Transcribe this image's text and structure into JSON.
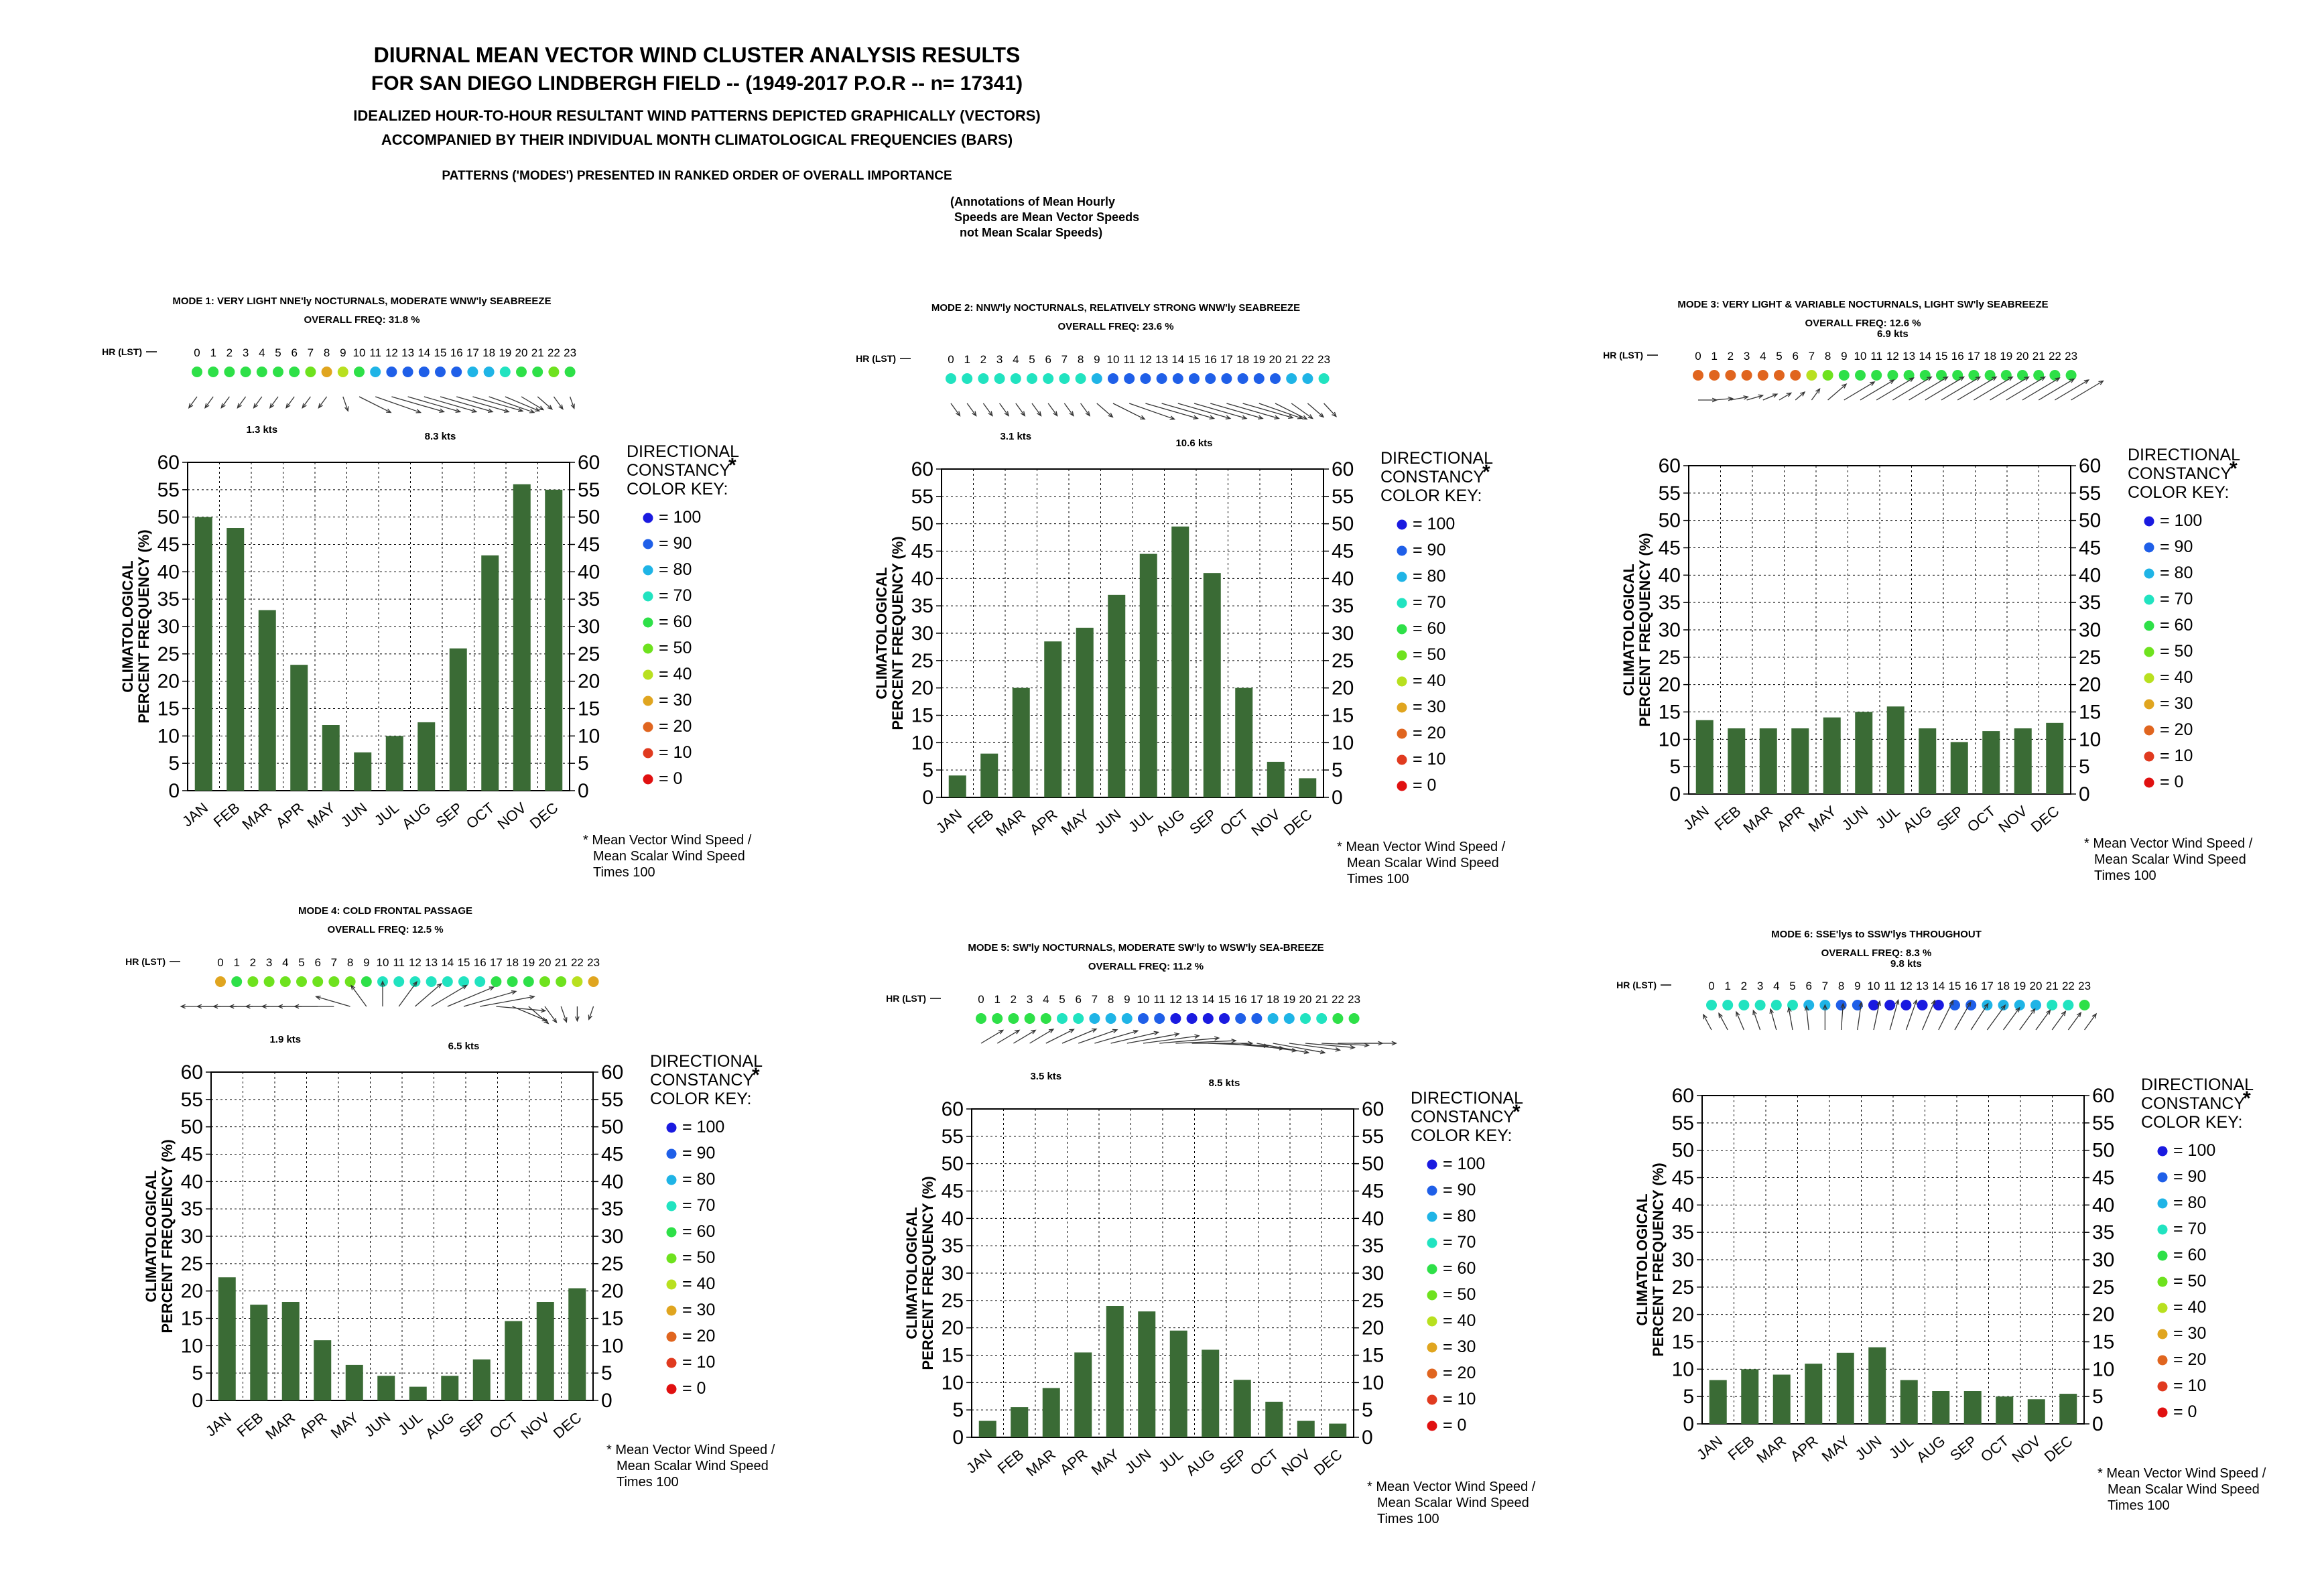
{
  "header": {
    "title": "DIURNAL MEAN VECTOR WIND CLUSTER ANALYSIS RESULTS",
    "subtitle": "FOR SAN DIEGO LINDBERGH FIELD --  (1949-2017 P.O.R -- n= 17341)",
    "line3": "IDEALIZED HOUR-TO-HOUR RESULTANT WIND PATTERNS DEPICTED GRAPHICALLY (VECTORS)",
    "line4": "ACCOMPANIED BY THEIR INDIVIDUAL MONTH CLIMATOLOGICAL FREQUENCIES (BARS)",
    "line5": "PATTERNS ('MODES') PRESENTED IN RANKED ORDER OF OVERALL IMPORTANCE",
    "note": [
      "(Annotations of Mean Hourly",
      "Speeds are Mean Vector Speeds",
      "not Mean Scalar Speeds)"
    ]
  },
  "common": {
    "ylabel_line1": "CLIMATOLOGICAL",
    "ylabel_line2": "PERCENT FREQUENCY (%)",
    "hr_label": "HR (LST)",
    "key_title": [
      "DIRECTIONAL",
      "CONSTANCY",
      "COLOR KEY:"
    ],
    "key_star": "*",
    "footnote": [
      "* Mean Vector Wind Speed /",
      "Mean Scalar Wind Speed",
      "Times 100"
    ],
    "key_levels": [
      100,
      90,
      80,
      70,
      60,
      50,
      40,
      30,
      20,
      10,
      0
    ],
    "key_colors": {
      "100": "#1a1ae0",
      "90": "#1f5fe8",
      "80": "#1fb4e6",
      "70": "#21e3c0",
      "60": "#2ee048",
      "50": "#6ee21e",
      "40": "#b8e01f",
      "30": "#e0a51f",
      "20": "#e0651f",
      "10": "#e03a1f",
      "0": "#e01010"
    },
    "bar_color": "#3a6b35",
    "hours": [
      "0",
      "1",
      "2",
      "3",
      "4",
      "5",
      "6",
      "7",
      "8",
      "9",
      "10",
      "11",
      "12",
      "13",
      "14",
      "15",
      "16",
      "17",
      "18",
      "19",
      "20",
      "21",
      "22",
      "23"
    ]
  },
  "chart_data": [
    {
      "type": "bar",
      "title": "MODE 1: VERY LIGHT NNE'ly NOCTURNALS, MODERATE WNW'ly SEABREEZE",
      "overall": "OVERALL FREQ: 31.8 %",
      "categories": [
        "JAN",
        "FEB",
        "MAR",
        "APR",
        "MAY",
        "JUN",
        "JUL",
        "AUG",
        "SEP",
        "OCT",
        "NOV",
        "DEC"
      ],
      "values": [
        50,
        48,
        33,
        23,
        12,
        7,
        10,
        12.5,
        26,
        43,
        56,
        55
      ],
      "ylim": [
        0,
        60
      ],
      "yticks": [
        0,
        5,
        10,
        15,
        20,
        25,
        30,
        35,
        40,
        45,
        50,
        55,
        60
      ],
      "hour_constancy": [
        60,
        60,
        60,
        60,
        60,
        60,
        60,
        50,
        30,
        40,
        60,
        80,
        90,
        90,
        90,
        90,
        90,
        80,
        80,
        70,
        60,
        60,
        50,
        60
      ],
      "vector_dirs": [
        200,
        200,
        200,
        200,
        200,
        200,
        200,
        200,
        200,
        170,
        135,
        125,
        120,
        120,
        120,
        120,
        120,
        120,
        125,
        130,
        140,
        150,
        160,
        170
      ],
      "vector_len": [
        0.3,
        0.3,
        0.3,
        0.3,
        0.3,
        0.3,
        0.3,
        0.3,
        0.3,
        0.4,
        0.7,
        0.9,
        1.0,
        1.0,
        1.0,
        1.0,
        1.0,
        0.95,
        0.9,
        0.7,
        0.5,
        0.4,
        0.35,
        0.3
      ],
      "annotations": [
        "1.3 kts",
        "8.3 kts"
      ]
    },
    {
      "type": "bar",
      "title": "MODE 2: NNW'ly NOCTURNALS, RELATIVELY STRONG WNW'ly SEABREEZE",
      "overall": "OVERALL FREQ: 23.6 %",
      "categories": [
        "JAN",
        "FEB",
        "MAR",
        "APR",
        "MAY",
        "JUN",
        "JUL",
        "AUG",
        "SEP",
        "OCT",
        "NOV",
        "DEC"
      ],
      "values": [
        4,
        8,
        20,
        28.5,
        31,
        37,
        44.5,
        49.5,
        41,
        20,
        6.5,
        3.5
      ],
      "ylim": [
        0,
        60
      ],
      "yticks": [
        0,
        5,
        10,
        15,
        20,
        25,
        30,
        35,
        40,
        45,
        50,
        55,
        60
      ],
      "hour_constancy": [
        70,
        70,
        70,
        70,
        70,
        70,
        70,
        70,
        70,
        80,
        90,
        90,
        90,
        90,
        90,
        90,
        90,
        90,
        90,
        90,
        90,
        80,
        80,
        70
      ],
      "vector_dirs": [
        160,
        160,
        160,
        160,
        160,
        160,
        160,
        160,
        160,
        150,
        135,
        125,
        120,
        120,
        120,
        120,
        120,
        120,
        120,
        125,
        135,
        145,
        150,
        155
      ],
      "vector_len": [
        0.35,
        0.35,
        0.35,
        0.35,
        0.35,
        0.35,
        0.35,
        0.35,
        0.35,
        0.45,
        0.7,
        0.9,
        1.0,
        1.0,
        1.0,
        1.0,
        1.0,
        1.0,
        0.95,
        0.85,
        0.7,
        0.55,
        0.45,
        0.4
      ],
      "annotations": [
        "3.1 kts",
        "10.6 kts"
      ]
    },
    {
      "type": "bar",
      "title": "MODE 3: VERY LIGHT & VARIABLE NOCTURNALS, LIGHT SW'ly SEABREEZE",
      "overall": "OVERALL FREQ: 12.6 %",
      "categories": [
        "JAN",
        "FEB",
        "MAR",
        "APR",
        "MAY",
        "JUN",
        "JUL",
        "AUG",
        "SEP",
        "OCT",
        "NOV",
        "DEC"
      ],
      "values": [
        13.5,
        12,
        12,
        12,
        14,
        15,
        16,
        12,
        9.5,
        11.5,
        12,
        13
      ],
      "ylim": [
        0,
        60
      ],
      "yticks": [
        0,
        5,
        10,
        15,
        20,
        25,
        30,
        35,
        40,
        45,
        50,
        55,
        60
      ],
      "hour_constancy": [
        20,
        20,
        20,
        20,
        20,
        20,
        20,
        40,
        50,
        60,
        60,
        60,
        60,
        60,
        60,
        60,
        60,
        60,
        60,
        60,
        60,
        60,
        60,
        60
      ],
      "vector_dirs": [
        90,
        80,
        70,
        60,
        50,
        40,
        30,
        20,
        30,
        40,
        40,
        40,
        40,
        40,
        40,
        40,
        40,
        40,
        40,
        40,
        40,
        40,
        40,
        40
      ],
      "vector_len": [
        0.2,
        0.2,
        0.2,
        0.2,
        0.2,
        0.2,
        0.2,
        0.3,
        0.55,
        0.75,
        0.85,
        0.95,
        1.0,
        1.0,
        1.0,
        1.0,
        1.0,
        1.0,
        1.0,
        1.0,
        0.95,
        0.9,
        0.85,
        0.8
      ],
      "annotations": [
        "6.9 kts"
      ]
    },
    {
      "type": "bar",
      "title": "MODE 4: COLD FRONTAL PASSAGE",
      "overall": "OVERALL FREQ: 12.5 %",
      "categories": [
        "JAN",
        "FEB",
        "MAR",
        "APR",
        "MAY",
        "JUN",
        "JUL",
        "AUG",
        "SEP",
        "OCT",
        "NOV",
        "DEC"
      ],
      "values": [
        22.5,
        17.5,
        18,
        11,
        6.5,
        4.5,
        2.5,
        4.5,
        7.5,
        14.5,
        18,
        20.5
      ],
      "ylim": [
        0,
        60
      ],
      "yticks": [
        0,
        5,
        10,
        15,
        20,
        25,
        30,
        35,
        40,
        45,
        50,
        55,
        60
      ],
      "hour_constancy": [
        30,
        60,
        50,
        50,
        50,
        50,
        50,
        50,
        50,
        60,
        70,
        70,
        70,
        70,
        70,
        70,
        70,
        60,
        60,
        60,
        50,
        50,
        40,
        30
      ],
      "vector_dirs": [
        270,
        270,
        270,
        270,
        270,
        270,
        270,
        270,
        300,
        340,
        0,
        20,
        30,
        40,
        50,
        60,
        70,
        100,
        130,
        150,
        160,
        170,
        180,
        190
      ],
      "vector_len": [
        0.6,
        0.6,
        0.6,
        0.6,
        0.6,
        0.6,
        0.6,
        0.6,
        0.6,
        0.7,
        0.8,
        0.85,
        0.85,
        0.9,
        1.0,
        1.0,
        0.95,
        0.8,
        0.7,
        0.6,
        0.5,
        0.45,
        0.4,
        0.35
      ],
      "annotations": [
        "1.9 kts",
        "6.5 kts"
      ]
    },
    {
      "type": "bar",
      "title": "MODE 5: SW'ly NOCTURNALS, MODERATE  SW'ly to WSW'ly SEA-BREEZE",
      "overall": "OVERALL FREQ: 11.2 %",
      "categories": [
        "JAN",
        "FEB",
        "MAR",
        "APR",
        "MAY",
        "JUN",
        "JUL",
        "AUG",
        "SEP",
        "OCT",
        "NOV",
        "DEC"
      ],
      "values": [
        3,
        5.5,
        9,
        15.5,
        24,
        23,
        19.5,
        16,
        10.5,
        6.5,
        3,
        2.5
      ],
      "ylim": [
        0,
        60
      ],
      "yticks": [
        0,
        5,
        10,
        15,
        20,
        25,
        30,
        35,
        40,
        45,
        50,
        55,
        60
      ],
      "hour_constancy": [
        60,
        60,
        60,
        60,
        60,
        70,
        70,
        80,
        80,
        80,
        90,
        90,
        100,
        100,
        100,
        100,
        90,
        90,
        80,
        80,
        70,
        70,
        60,
        60
      ],
      "vector_dirs": [
        40,
        40,
        40,
        40,
        45,
        50,
        55,
        60,
        65,
        70,
        75,
        80,
        85,
        90,
        95,
        100,
        105,
        110,
        110,
        105,
        100,
        95,
        90,
        90
      ],
      "vector_len": [
        0.5,
        0.5,
        0.5,
        0.55,
        0.6,
        0.7,
        0.75,
        0.8,
        0.85,
        0.9,
        0.95,
        1.0,
        1.0,
        1.0,
        1.0,
        1.0,
        0.95,
        0.9,
        0.9,
        0.85,
        0.8,
        0.75,
        0.7,
        0.65
      ],
      "annotations": [
        "3.5 kts",
        "8.5 kts"
      ]
    },
    {
      "type": "bar",
      "title": "MODE 6: SSE'lys to SSW'lys THROUGHOUT",
      "overall": "OVERALL FREQ: 8.3 %",
      "categories": [
        "JAN",
        "FEB",
        "MAR",
        "APR",
        "MAY",
        "JUN",
        "JUL",
        "AUG",
        "SEP",
        "OCT",
        "NOV",
        "DEC"
      ],
      "values": [
        8,
        10,
        9,
        11,
        13,
        14,
        8,
        6,
        6,
        5,
        4.5,
        5.5
      ],
      "ylim": [
        0,
        60
      ],
      "yticks": [
        0,
        5,
        10,
        15,
        20,
        25,
        30,
        35,
        40,
        45,
        50,
        55,
        60
      ],
      "hour_constancy": [
        70,
        70,
        70,
        70,
        70,
        70,
        80,
        80,
        90,
        90,
        100,
        100,
        100,
        100,
        100,
        90,
        90,
        80,
        80,
        80,
        80,
        70,
        70,
        60
      ],
      "vector_dirs": [
        -15,
        -15,
        -12,
        -10,
        -8,
        -5,
        -3,
        0,
        2,
        4,
        6,
        8,
        10,
        12,
        14,
        16,
        18,
        20,
        20,
        20,
        20,
        20,
        20,
        20
      ],
      "vector_len": [
        0.45,
        0.5,
        0.55,
        0.6,
        0.65,
        0.7,
        0.75,
        0.8,
        0.85,
        0.9,
        0.95,
        1.0,
        1.0,
        1.0,
        1.0,
        0.95,
        0.9,
        0.85,
        0.75,
        0.7,
        0.65,
        0.6,
        0.55,
        0.5
      ],
      "annotations": [
        "9.8 kts"
      ]
    }
  ]
}
